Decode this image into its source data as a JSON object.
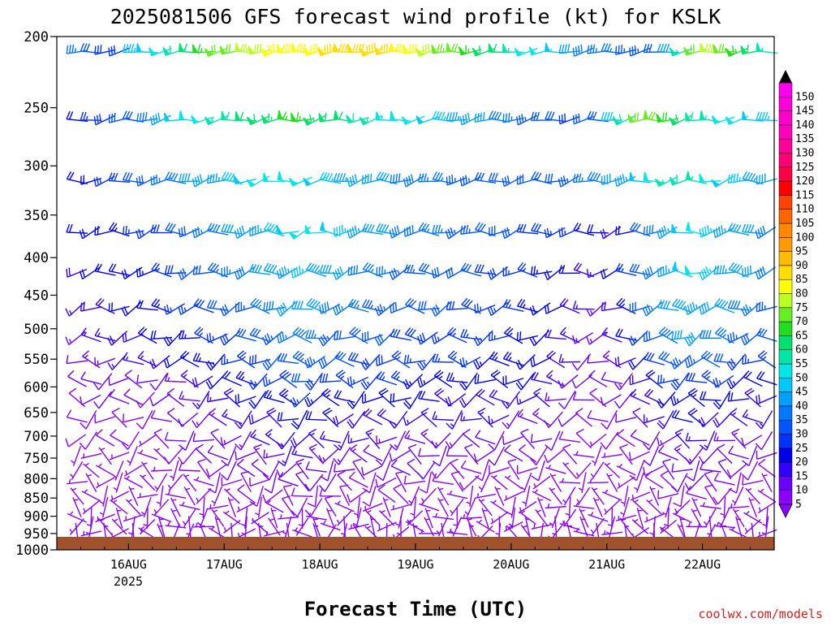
{
  "chart_data": {
    "type": "wind-barb-profile",
    "title": "2025081506 GFS forecast wind profile (kt) for KSLK",
    "xlabel": "Forecast Time (UTC)",
    "ylabel": "",
    "credit": "coolwx.com/models",
    "y_ticks": [
      "200",
      "250",
      "300",
      "350",
      "400",
      "450",
      "500",
      "550",
      "600",
      "650",
      "700",
      "750",
      "800",
      "850",
      "900",
      "950",
      "1000"
    ],
    "y_values": [
      200,
      250,
      300,
      350,
      400,
      450,
      500,
      550,
      600,
      650,
      700,
      750,
      800,
      850,
      900,
      950,
      1000
    ],
    "x_ticks": [
      "16AUG",
      "17AUG",
      "18AUG",
      "19AUG",
      "20AUG",
      "21AUG",
      "22AUG"
    ],
    "x_year": "2025",
    "x_range_days": [
      15.25,
      22.75
    ],
    "y_range_hpa": [
      200,
      1000
    ],
    "surface_pressure_hpa": 960,
    "surface_color": "#a0522d",
    "colorbar_ticks": [
      "5",
      "10",
      "15",
      "20",
      "25",
      "30",
      "35",
      "40",
      "45",
      "50",
      "55",
      "60",
      "65",
      "70",
      "75",
      "80",
      "85",
      "90",
      "95",
      "100",
      "105",
      "110",
      "115",
      "120",
      "125",
      "130",
      "135",
      "140",
      "145",
      "150"
    ],
    "colorbar_colors": [
      "#8b00ff",
      "#6a00ff",
      "#3300ff",
      "#0000e6",
      "#0033ff",
      "#0055ff",
      "#0077ff",
      "#00a0ff",
      "#00c8ff",
      "#00e6e6",
      "#00e6aa",
      "#00e070",
      "#20dd20",
      "#66ee22",
      "#bbff22",
      "#ffff00",
      "#ffdd00",
      "#ffbb00",
      "#ff9900",
      "#ff8800",
      "#ff6600",
      "#ff4400",
      "#ff0000",
      "#ff0044",
      "#ff0077",
      "#ff0099",
      "#ff00bb",
      "#ff00cc",
      "#ff00dd",
      "#ff00ee"
    ],
    "barb_levels_hpa": [
      210,
      260,
      315,
      370,
      420,
      470,
      515,
      555,
      590,
      625,
      665,
      710,
      745,
      780,
      810,
      845,
      875,
      905,
      930,
      950
    ],
    "barb_speeds_kt": [
      [
        35,
        30,
        28,
        28,
        45,
        48,
        52,
        58,
        62,
        66,
        70,
        72,
        75,
        78,
        80,
        82,
        84,
        84,
        86,
        86,
        88,
        88,
        85,
        82,
        80,
        78,
        74,
        70,
        66,
        62,
        60,
        56,
        52,
        50,
        48,
        40,
        38,
        36,
        35,
        34,
        34,
        32,
        42,
        55,
        72,
        78,
        74,
        65,
        60,
        55
      ],
      [
        20,
        25,
        28,
        30,
        32,
        38,
        42,
        48,
        50,
        52,
        56,
        58,
        60,
        62,
        64,
        66,
        66,
        64,
        62,
        60,
        58,
        56,
        54,
        52,
        50,
        48,
        46,
        44,
        42,
        40,
        38,
        36,
        34,
        32,
        30,
        28,
        30,
        32,
        45,
        58,
        70,
        72,
        68,
        62,
        58,
        55,
        52,
        50,
        48,
        46
      ],
      [
        20,
        22,
        25,
        28,
        30,
        32,
        35,
        38,
        40,
        42,
        44,
        46,
        48,
        50,
        52,
        52,
        50,
        48,
        46,
        44,
        42,
        40,
        40,
        38,
        38,
        36,
        35,
        34,
        33,
        32,
        31,
        30,
        30,
        30,
        32,
        34,
        36,
        38,
        40,
        44,
        48,
        52,
        56,
        58,
        56,
        52,
        48,
        46,
        44,
        42
      ],
      [
        20,
        22,
        22,
        24,
        25,
        26,
        28,
        30,
        32,
        35,
        38,
        40,
        42,
        44,
        46,
        48,
        50,
        50,
        48,
        46,
        44,
        42,
        40,
        38,
        38,
        36,
        35,
        34,
        33,
        32,
        31,
        30,
        28,
        28,
        26,
        25,
        22,
        20,
        18,
        22,
        30,
        38,
        44,
        48,
        50,
        46,
        44,
        42,
        40,
        38
      ],
      [
        18,
        20,
        20,
        22,
        22,
        24,
        26,
        28,
        30,
        32,
        34,
        36,
        38,
        40,
        42,
        44,
        46,
        44,
        42,
        40,
        38,
        36,
        35,
        34,
        33,
        32,
        31,
        30,
        30,
        28,
        28,
        26,
        25,
        24,
        22,
        20,
        18,
        16,
        20,
        26,
        32,
        38,
        44,
        48,
        50,
        46,
        44,
        42,
        40,
        38
      ],
      [
        15,
        18,
        18,
        20,
        20,
        22,
        24,
        25,
        26,
        28,
        30,
        32,
        34,
        36,
        38,
        40,
        42,
        40,
        38,
        36,
        35,
        34,
        33,
        32,
        31,
        30,
        30,
        28,
        28,
        26,
        26,
        25,
        24,
        22,
        20,
        18,
        15,
        14,
        18,
        24,
        30,
        36,
        42,
        44,
        44,
        42,
        40,
        38,
        36,
        34
      ],
      [
        14,
        15,
        16,
        18,
        18,
        20,
        22,
        23,
        24,
        25,
        26,
        28,
        30,
        32,
        34,
        36,
        38,
        36,
        34,
        32,
        31,
        30,
        30,
        29,
        28,
        28,
        27,
        26,
        26,
        25,
        25,
        24,
        22,
        20,
        18,
        16,
        14,
        14,
        16,
        20,
        26,
        32,
        38,
        40,
        40,
        38,
        36,
        34,
        32,
        30
      ],
      [
        12,
        13,
        14,
        15,
        15,
        16,
        18,
        20,
        22,
        23,
        24,
        25,
        26,
        28,
        30,
        32,
        34,
        33,
        32,
        30,
        29,
        28,
        28,
        27,
        27,
        26,
        26,
        25,
        25,
        24,
        24,
        23,
        22,
        20,
        18,
        15,
        12,
        12,
        14,
        18,
        22,
        28,
        32,
        34,
        34,
        32,
        30,
        28,
        26,
        25
      ],
      [
        10,
        11,
        12,
        12,
        12,
        10,
        12,
        14,
        16,
        18,
        20,
        22,
        24,
        25,
        26,
        28,
        30,
        29,
        28,
        27,
        26,
        26,
        25,
        25,
        24,
        24,
        23,
        23,
        22,
        22,
        22,
        21,
        20,
        18,
        16,
        14,
        12,
        10,
        12,
        14,
        18,
        22,
        26,
        28,
        28,
        26,
        25,
        24,
        22,
        20
      ],
      [
        9,
        10,
        10,
        10,
        10,
        9,
        10,
        12,
        14,
        15,
        16,
        18,
        20,
        22,
        23,
        24,
        25,
        24,
        23,
        22,
        22,
        21,
        21,
        20,
        20,
        20,
        19,
        19,
        18,
        18,
        18,
        17,
        16,
        15,
        14,
        12,
        10,
        9,
        10,
        12,
        15,
        18,
        22,
        24,
        24,
        22,
        21,
        20,
        19,
        18
      ],
      [
        8,
        9,
        9,
        9,
        9,
        8,
        9,
        10,
        12,
        13,
        14,
        15,
        16,
        18,
        19,
        20,
        22,
        21,
        20,
        19,
        19,
        18,
        18,
        17,
        17,
        17,
        16,
        16,
        15,
        15,
        15,
        14,
        14,
        13,
        12,
        10,
        9,
        8,
        9,
        10,
        12,
        15,
        18,
        20,
        20,
        19,
        18,
        17,
        16,
        15
      ],
      [
        8,
        8,
        8,
        8,
        8,
        7,
        8,
        9,
        10,
        11,
        12,
        13,
        14,
        15,
        16,
        17,
        18,
        17,
        16,
        16,
        15,
        15,
        14,
        14,
        14,
        13,
        13,
        13,
        12,
        12,
        12,
        11,
        11,
        10,
        10,
        9,
        8,
        7,
        8,
        9,
        10,
        12,
        14,
        16,
        16,
        15,
        14,
        13,
        12,
        12
      ],
      [
        7,
        7,
        7,
        7,
        7,
        6,
        7,
        8,
        9,
        10,
        10,
        11,
        12,
        13,
        14,
        15,
        15,
        14,
        14,
        13,
        13,
        12,
        12,
        12,
        11,
        11,
        11,
        10,
        10,
        10,
        10,
        10,
        9,
        9,
        8,
        8,
        7,
        6,
        7,
        8,
        9,
        10,
        12,
        13,
        13,
        12,
        12,
        11,
        10,
        10
      ],
      [
        7,
        7,
        7,
        6,
        6,
        6,
        6,
        7,
        8,
        8,
        9,
        10,
        10,
        11,
        12,
        12,
        13,
        12,
        12,
        11,
        11,
        11,
        10,
        10,
        10,
        10,
        9,
        9,
        9,
        9,
        9,
        8,
        8,
        8,
        7,
        7,
        6,
        6,
        6,
        7,
        8,
        9,
        10,
        11,
        11,
        10,
        10,
        9,
        9,
        8
      ],
      [
        6,
        6,
        6,
        6,
        6,
        5,
        6,
        6,
        7,
        7,
        8,
        8,
        9,
        9,
        10,
        10,
        11,
        10,
        10,
        10,
        9,
        9,
        9,
        9,
        8,
        8,
        8,
        8,
        8,
        7,
        7,
        7,
        7,
        7,
        6,
        6,
        6,
        5,
        6,
        6,
        7,
        8,
        9,
        10,
        10,
        9,
        9,
        8,
        8,
        7
      ],
      [
        6,
        6,
        6,
        5,
        5,
        5,
        5,
        6,
        6,
        6,
        7,
        7,
        8,
        8,
        8,
        9,
        9,
        9,
        9,
        8,
        8,
        8,
        8,
        8,
        7,
        7,
        7,
        7,
        7,
        7,
        6,
        6,
        6,
        6,
        6,
        5,
        5,
        5,
        5,
        6,
        6,
        7,
        8,
        8,
        8,
        8,
        8,
        7,
        7,
        7
      ],
      [
        5,
        5,
        5,
        5,
        5,
        5,
        5,
        5,
        5,
        6,
        6,
        6,
        7,
        7,
        7,
        8,
        8,
        8,
        8,
        7,
        7,
        7,
        7,
        7,
        7,
        6,
        6,
        6,
        6,
        6,
        6,
        6,
        5,
        5,
        5,
        5,
        5,
        5,
        5,
        5,
        6,
        6,
        7,
        7,
        7,
        7,
        7,
        6,
        6,
        6
      ],
      [
        5,
        5,
        5,
        5,
        5,
        5,
        5,
        5,
        5,
        5,
        5,
        6,
        6,
        6,
        6,
        7,
        7,
        7,
        7,
        6,
        6,
        6,
        6,
        6,
        6,
        6,
        5,
        5,
        5,
        5,
        5,
        5,
        5,
        5,
        5,
        5,
        5,
        5,
        5,
        5,
        5,
        6,
        6,
        6,
        6,
        6,
        6,
        6,
        5,
        5
      ],
      [
        5,
        5,
        5,
        5,
        5,
        5,
        5,
        5,
        5,
        5,
        5,
        5,
        5,
        5,
        6,
        6,
        6,
        6,
        6,
        6,
        6,
        6,
        5,
        5,
        5,
        5,
        5,
        5,
        5,
        5,
        5,
        5,
        5,
        5,
        5,
        5,
        5,
        5,
        5,
        5,
        5,
        5,
        5,
        6,
        6,
        5,
        5,
        5,
        5,
        5
      ],
      [
        5,
        5,
        5,
        5,
        5,
        5,
        5,
        5,
        5,
        5,
        5,
        5,
        5,
        5,
        5,
        5,
        5,
        5,
        5,
        5,
        5,
        5,
        5,
        5,
        5,
        5,
        5,
        5,
        5,
        5,
        5,
        5,
        5,
        5,
        5,
        5,
        5,
        5,
        5,
        5,
        5,
        5,
        5,
        5,
        5,
        5,
        5,
        5,
        5,
        5
      ]
    ]
  }
}
